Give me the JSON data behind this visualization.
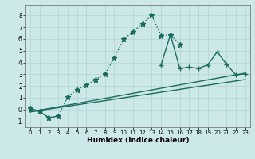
{
  "title": "",
  "xlabel": "Humidex (Indice chaleur)",
  "bg_color": "#cce8e8",
  "grid_color": "#b0d4d4",
  "line_color": "#1a6b5e",
  "xlim": [
    -0.5,
    23.5
  ],
  "ylim": [
    -1.5,
    8.9
  ],
  "xticks": [
    0,
    1,
    2,
    3,
    4,
    5,
    6,
    7,
    8,
    9,
    10,
    11,
    12,
    13,
    14,
    15,
    16,
    17,
    18,
    19,
    20,
    21,
    22,
    23
  ],
  "yticks": [
    -1,
    0,
    1,
    2,
    3,
    4,
    5,
    6,
    7,
    8
  ],
  "series": [
    {
      "x": [
        0,
        1,
        2,
        3,
        4,
        5,
        6,
        7,
        8,
        9,
        10,
        11,
        12,
        13,
        14,
        15,
        16
      ],
      "y": [
        0.1,
        -0.15,
        -0.7,
        -0.55,
        1.05,
        1.7,
        2.05,
        2.55,
        3.05,
        4.35,
        6.0,
        6.6,
        7.3,
        8.0,
        6.3,
        6.35,
        5.55
      ],
      "style": "dotted",
      "marker": "*",
      "linewidth": 1.0,
      "markersize": 4.5
    },
    {
      "x": [
        0,
        1,
        2,
        3,
        14,
        15,
        16,
        17,
        18,
        19,
        20,
        21,
        22,
        23
      ],
      "y": [
        0.1,
        -0.15,
        -0.7,
        -0.55,
        3.8,
        6.35,
        3.5,
        3.6,
        3.5,
        3.8,
        4.9,
        3.85,
        2.95,
        3.05
      ],
      "style": "-",
      "marker": "+",
      "linewidth": 1.0,
      "markersize": 5
    },
    {
      "x": [
        0,
        23
      ],
      "y": [
        -0.2,
        2.55
      ],
      "style": "-",
      "marker": null,
      "linewidth": 1.0
    },
    {
      "x": [
        0,
        23
      ],
      "y": [
        -0.2,
        3.1
      ],
      "style": "-",
      "marker": null,
      "linewidth": 1.0
    }
  ]
}
